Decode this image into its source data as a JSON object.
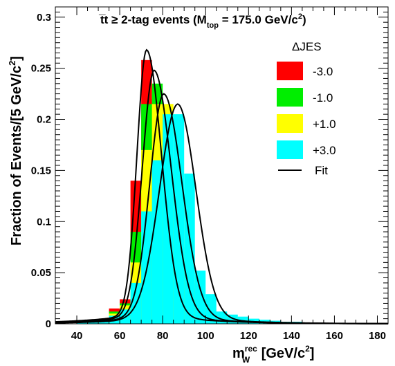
{
  "chart_data": {
    "type": "bar",
    "title": {
      "main": "t̅t ≥ 2-tag events (M",
      "sub": "top",
      "mid": " = 175.0 GeV/c",
      "sup": "2",
      "end": ")"
    },
    "ylabel": {
      "text": "Fraction of Events/[5 GeV/c",
      "sup": "2",
      "end": "]"
    },
    "xlabel": {
      "base": "m",
      "sup": "rec",
      "sub": "W",
      "rest": " [GeV/c",
      "sup2": "2",
      "end": "]"
    },
    "xlim": [
      30,
      185
    ],
    "ylim": [
      0,
      0.31
    ],
    "bin_width": 5,
    "x_ticks": [
      40,
      60,
      80,
      100,
      120,
      140,
      160,
      180
    ],
    "y_ticks": [
      0,
      0.05,
      0.1,
      0.15,
      0.2,
      0.25,
      0.3
    ],
    "y_tick_labels": [
      "0",
      "0.05",
      "0.1",
      "0.15",
      "0.2",
      "0.25",
      "0.3"
    ],
    "legend": {
      "title": "ΔJES",
      "position": "top-right",
      "fit_label": "Fit"
    },
    "series": [
      {
        "name": "-3.0",
        "color": "#ff0000",
        "bins": [
          [
            40,
            0.0
          ],
          [
            45,
            0.001
          ],
          [
            50,
            0.003
          ],
          [
            55,
            0.015
          ],
          [
            60,
            0.024
          ],
          [
            65,
            0.14
          ],
          [
            70,
            0.258
          ],
          [
            75,
            0.22
          ],
          [
            80,
            0.11
          ],
          [
            85,
            0.06
          ],
          [
            90,
            0.035
          ],
          [
            95,
            0.02
          ],
          [
            100,
            0.011
          ],
          [
            105,
            0.008
          ],
          [
            110,
            0.006
          ],
          [
            115,
            0.005
          ],
          [
            120,
            0.004
          ],
          [
            125,
            0.003
          ],
          [
            130,
            0.002
          ],
          [
            135,
            0.002
          ],
          [
            140,
            0.001
          ],
          [
            145,
            0.001
          ],
          [
            150,
            0.001
          ],
          [
            155,
            0.0
          ],
          [
            160,
            0.0
          ],
          [
            165,
            0.0
          ],
          [
            170,
            0.0
          ],
          [
            175,
            0.0
          ],
          [
            180,
            0.0
          ]
        ]
      },
      {
        "name": "-1.0",
        "color": "#00ee00",
        "bins": [
          [
            40,
            0.0
          ],
          [
            45,
            0.001
          ],
          [
            50,
            0.003
          ],
          [
            55,
            0.012
          ],
          [
            60,
            0.02
          ],
          [
            65,
            0.09
          ],
          [
            70,
            0.215
          ],
          [
            75,
            0.235
          ],
          [
            80,
            0.15
          ],
          [
            85,
            0.075
          ],
          [
            90,
            0.04
          ],
          [
            95,
            0.022
          ],
          [
            100,
            0.012
          ],
          [
            105,
            0.009
          ],
          [
            110,
            0.006
          ],
          [
            115,
            0.005
          ],
          [
            120,
            0.004
          ],
          [
            125,
            0.003
          ],
          [
            130,
            0.002
          ],
          [
            135,
            0.002
          ],
          [
            140,
            0.001
          ],
          [
            145,
            0.001
          ],
          [
            150,
            0.001
          ],
          [
            155,
            0.0
          ],
          [
            160,
            0.0
          ],
          [
            165,
            0.0
          ],
          [
            170,
            0.0
          ],
          [
            175,
            0.0
          ],
          [
            180,
            0.0
          ]
        ]
      },
      {
        "name": "+1.0",
        "color": "#ffff00",
        "bins": [
          [
            40,
            0.0
          ],
          [
            45,
            0.001
          ],
          [
            50,
            0.003
          ],
          [
            55,
            0.01
          ],
          [
            60,
            0.018
          ],
          [
            65,
            0.06
          ],
          [
            70,
            0.17
          ],
          [
            75,
            0.215
          ],
          [
            80,
            0.215
          ],
          [
            85,
            0.12
          ],
          [
            90,
            0.05
          ],
          [
            95,
            0.025
          ],
          [
            100,
            0.014
          ],
          [
            105,
            0.01
          ],
          [
            110,
            0.007
          ],
          [
            115,
            0.005
          ],
          [
            120,
            0.004
          ],
          [
            125,
            0.003
          ],
          [
            130,
            0.002
          ],
          [
            135,
            0.002
          ],
          [
            140,
            0.001
          ],
          [
            145,
            0.001
          ],
          [
            150,
            0.001
          ],
          [
            155,
            0.0
          ],
          [
            160,
            0.0
          ],
          [
            165,
            0.0
          ],
          [
            170,
            0.0
          ],
          [
            175,
            0.0
          ],
          [
            180,
            0.0
          ]
        ]
      },
      {
        "name": "+3.0",
        "color": "#00ffff",
        "bins": [
          [
            40,
            0.001
          ],
          [
            45,
            0.002
          ],
          [
            50,
            0.004
          ],
          [
            55,
            0.008
          ],
          [
            60,
            0.014
          ],
          [
            65,
            0.04
          ],
          [
            70,
            0.11
          ],
          [
            75,
            0.16
          ],
          [
            80,
            0.205
          ],
          [
            85,
            0.205
          ],
          [
            90,
            0.147
          ],
          [
            95,
            0.052
          ],
          [
            100,
            0.029
          ],
          [
            105,
            0.012
          ],
          [
            110,
            0.009
          ],
          [
            115,
            0.007
          ],
          [
            120,
            0.005
          ],
          [
            125,
            0.004
          ],
          [
            130,
            0.003
          ],
          [
            135,
            0.002
          ],
          [
            140,
            0.002
          ],
          [
            145,
            0.001
          ],
          [
            150,
            0.001
          ],
          [
            155,
            0.001
          ],
          [
            160,
            0.0
          ],
          [
            165,
            0.0
          ],
          [
            170,
            0.0
          ],
          [
            175,
            0.0
          ],
          [
            180,
            0.0
          ]
        ]
      }
    ],
    "fits": [
      {
        "name": "-3.0",
        "peak_x": 72.5,
        "peak_y": 0.268,
        "sigma_left": 4.5,
        "sigma_right": 7.0
      },
      {
        "name": "-1.0",
        "peak_x": 76.0,
        "peak_y": 0.248,
        "sigma_left": 5.5,
        "sigma_right": 8.0
      },
      {
        "name": "+1.0",
        "peak_x": 80.5,
        "peak_y": 0.225,
        "sigma_left": 6.5,
        "sigma_right": 8.5
      },
      {
        "name": "+3.0",
        "peak_x": 87.0,
        "peak_y": 0.215,
        "sigma_left": 8.5,
        "sigma_right": 8.5
      }
    ]
  }
}
